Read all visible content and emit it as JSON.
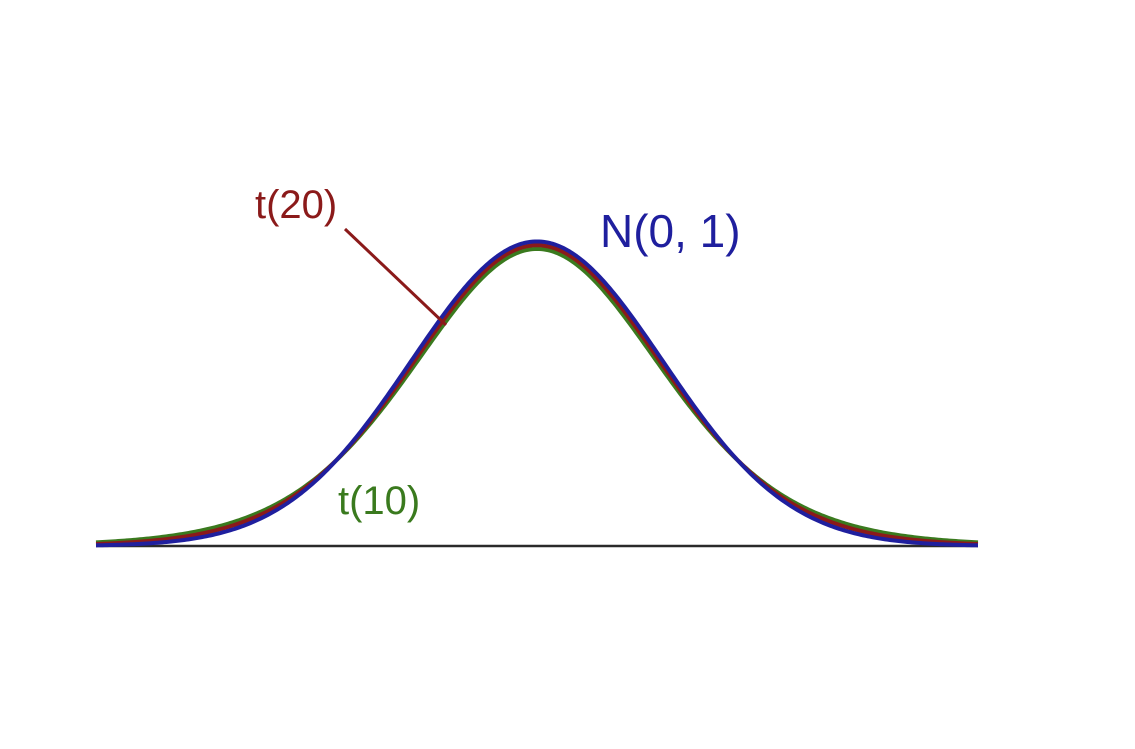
{
  "chart_data": {
    "type": "line",
    "title": "",
    "xlabel": "",
    "ylabel": "",
    "xlim": [
      -3.5,
      3.5
    ],
    "ylim": [
      0,
      0.41
    ],
    "grid": false,
    "series": [
      {
        "name": "N(0, 1)",
        "label": "N(0, 1)",
        "color": "#1f1f9e",
        "dist": "normal",
        "df": null
      },
      {
        "name": "t(20)",
        "label": "t(20)",
        "color": "#8b1a1a",
        "dist": "t",
        "df": 20
      },
      {
        "name": "t(10)",
        "label": "t(10)",
        "color": "#3a7a1e",
        "dist": "t",
        "df": 10
      }
    ]
  }
}
